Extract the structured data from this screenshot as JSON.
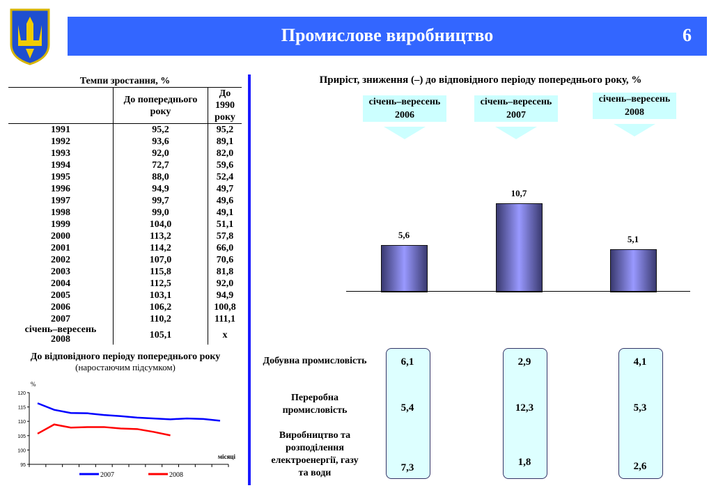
{
  "header": {
    "title": "Промислове виробництво",
    "page": "6"
  },
  "table": {
    "title": "Темпи зростання, %",
    "col1": "До попереднього року",
    "col2": "До 1990 року",
    "rows": [
      [
        "1991",
        "95,2",
        "95,2"
      ],
      [
        "1992",
        "93,6",
        "89,1"
      ],
      [
        "1993",
        "92,0",
        "82,0"
      ],
      [
        "1994",
        "72,7",
        "59,6"
      ],
      [
        "1995",
        "88,0",
        "52,4"
      ],
      [
        "1996",
        "94,9",
        "49,7"
      ],
      [
        "1997",
        "99,7",
        "49,6"
      ],
      [
        "1998",
        "99,0",
        "49,1"
      ],
      [
        "1999",
        "104,0",
        "51,1"
      ],
      [
        "2000",
        "113,2",
        "57,8"
      ],
      [
        "2001",
        "114,2",
        "66,0"
      ],
      [
        "2002",
        "107,0",
        "70,6"
      ],
      [
        "2003",
        "115,8",
        "81,8"
      ],
      [
        "2004",
        "112,5",
        "92,0"
      ],
      [
        "2005",
        "103,1",
        "94,9"
      ],
      [
        "2006",
        "106,2",
        "100,8"
      ],
      [
        "2007",
        "110,2",
        "111,1"
      ],
      [
        "січень–вересень 2008",
        "105,1",
        "х"
      ]
    ]
  },
  "chart_data": [
    {
      "type": "line",
      "title": "До відповідного періоду попереднього року",
      "subtitle": "(наростаючим підсумком)",
      "ylabel": "%",
      "xlabel": "місяці",
      "ylim": [
        95,
        120
      ],
      "yticks": [
        "95",
        "100",
        "105",
        "110",
        "115",
        "120"
      ],
      "legend": "bottom",
      "series": [
        {
          "name": "2007",
          "color": "#0000ff",
          "values": [
            116.3,
            114.0,
            112.9,
            112.8,
            112.2,
            111.8,
            111.3,
            111.0,
            110.7,
            111.0,
            110.8,
            110.2
          ]
        },
        {
          "name": "2008",
          "color": "#ff0000",
          "values": [
            105.7,
            108.9,
            107.8,
            108.0,
            108.0,
            107.5,
            107.3,
            106.3,
            105.1
          ]
        }
      ]
    },
    {
      "type": "bar",
      "title": "Приріст, зниження (–) до відповідного періоду попереднього року, %",
      "categories": [
        "січень–вересень 2006",
        "січень–вересень 2007",
        "січень–вересень 2008"
      ],
      "cat_line1": "січень–вересень",
      "cat_years": [
        "2006",
        "2007",
        "2008"
      ],
      "values": [
        5.6,
        10.7,
        5.1
      ],
      "labels": [
        "5,6",
        "10,7",
        "5,1"
      ]
    }
  ],
  "breakdown": {
    "rows": [
      {
        "label": "Добувна промисловість",
        "values": [
          "6,1",
          "2,9",
          "4,1"
        ]
      },
      {
        "label": "Переробна промисловість",
        "values": [
          "5,4",
          "12,3",
          "5,3"
        ]
      },
      {
        "label": "Виробництво та розподілення електроенергії, газу та води",
        "values": [
          "7,3",
          "1,8",
          "2,6"
        ]
      }
    ]
  }
}
